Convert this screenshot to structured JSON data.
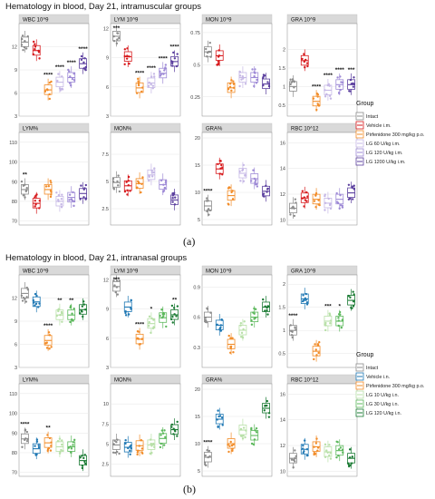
{
  "chart_data": [
    {
      "type": "box",
      "title": "Hematology in blood, Day 21, intramuscular groups",
      "caption": "(a)",
      "legend_title": "Group",
      "legend_placement": "right",
      "groups": [
        {
          "name": "Intact",
          "color": "#8c8c8c"
        },
        {
          "name": "Vehicle i.m.",
          "color": "#d7191c"
        },
        {
          "name": "Pirfenidone 300 mg/kg p.o.",
          "color": "#f28c28"
        },
        {
          "name": "LG 60 U/kg i.m.",
          "color": "#c6b8e6"
        },
        {
          "name": "LG 120 U/kg i.m.",
          "color": "#9e8ad6"
        },
        {
          "name": "LG 1200 U/kg i.m.",
          "color": "#5b3f9e"
        }
      ],
      "panels": [
        {
          "title": "WBC 10^9",
          "ylim": [
            3,
            15
          ],
          "yticks": [
            3,
            6,
            9,
            12
          ],
          "medians": [
            12.6,
            11.5,
            6.4,
            7.4,
            8.0,
            9.8
          ],
          "stars": [
            "",
            "",
            "****",
            "****",
            "****",
            "****"
          ]
        },
        {
          "title": "LYM 10^9",
          "ylim": [
            3,
            12.5
          ],
          "yticks": [
            3,
            6,
            9,
            12
          ],
          "medians": [
            11.2,
            9.1,
            5.9,
            6.4,
            7.4,
            8.6
          ],
          "stars": [
            "***",
            "",
            "****",
            "****",
            "****",
            "****"
          ]
        },
        {
          "title": "MON 10^9",
          "ylim": [
            0.1,
            0.82
          ],
          "yticks": [
            0.25,
            0.5,
            0.75
          ],
          "medians": [
            0.6,
            0.57,
            0.32,
            0.4,
            0.4,
            0.35
          ],
          "stars": [
            "",
            "",
            "",
            "",
            "",
            ""
          ]
        },
        {
          "title": "GRA 10^9",
          "ylim": [
            0.2,
            2.7
          ],
          "yticks": [
            0.5,
            1.0,
            1.5,
            2.0
          ],
          "medians": [
            1.0,
            1.7,
            0.6,
            0.9,
            1.05,
            1.05
          ],
          "stars": [
            "",
            "",
            "****",
            "****",
            "****",
            "***"
          ]
        },
        {
          "title": "LYM%",
          "ylim": [
            68,
            115
          ],
          "yticks": [
            70,
            80,
            90,
            100,
            110
          ],
          "medians": [
            86,
            79,
            86,
            80,
            82,
            84
          ],
          "stars": [
            "**",
            "",
            "",
            "",
            "",
            ""
          ]
        },
        {
          "title": "MON%",
          "ylim": [
            1,
            9.5
          ],
          "yticks": [
            2.5,
            5.0,
            7.5
          ],
          "medians": [
            4.9,
            4.6,
            4.8,
            5.6,
            4.7,
            3.3
          ],
          "stars": [
            "",
            "",
            "",
            "",
            "",
            ""
          ]
        },
        {
          "title": "GRA%",
          "ylim": [
            4,
            21
          ],
          "yticks": [
            5,
            10,
            15,
            20
          ],
          "medians": [
            7.5,
            14.3,
            9.4,
            13.5,
            12.5,
            10.2
          ],
          "stars": [
            "****",
            "",
            "",
            "",
            "",
            ""
          ]
        },
        {
          "title": "RBC 10^12",
          "ylim": [
            9.6,
            16.8
          ],
          "yticks": [
            10,
            12,
            14,
            16
          ],
          "medians": [
            10.9,
            11.7,
            11.6,
            11.3,
            11.6,
            12.1
          ],
          "stars": [
            "",
            "",
            "",
            "",
            "",
            ""
          ]
        }
      ]
    },
    {
      "type": "box",
      "title": "Hematology in blood, Day 21, intranasal groups",
      "caption": "(b)",
      "legend_title": "Group",
      "legend_placement": "right",
      "groups": [
        {
          "name": "Intact",
          "color": "#8c8c8c"
        },
        {
          "name": "Vehicle i.n.",
          "color": "#1f78b4"
        },
        {
          "name": "Pirfenidone 300 mg/kg p.o.",
          "color": "#f28c28"
        },
        {
          "name": "LG 10 U/kg i.n.",
          "color": "#b8e0a8"
        },
        {
          "name": "LG 30 U/kg i.n.",
          "color": "#5cb85c"
        },
        {
          "name": "LG 120 U/kg i.n.",
          "color": "#1a7a33"
        }
      ],
      "panels": [
        {
          "title": "WBC 10^9",
          "ylim": [
            3,
            15
          ],
          "yticks": [
            3,
            6,
            9,
            12
          ],
          "medians": [
            12.6,
            11.5,
            6.5,
            9.8,
            9.8,
            10.5
          ],
          "stars": [
            "",
            "",
            "****",
            "**",
            "**",
            ""
          ]
        },
        {
          "title": "LYM 10^9",
          "ylim": [
            3,
            12.5
          ],
          "yticks": [
            3,
            6,
            9,
            12
          ],
          "medians": [
            11.3,
            9.2,
            5.9,
            7.5,
            8.1,
            8.4
          ],
          "stars": [
            "***",
            "",
            "****",
            "*",
            "",
            "**"
          ]
        },
        {
          "title": "MON 10^9",
          "ylim": [
            0.1,
            1.02
          ],
          "yticks": [
            0.3,
            0.6,
            0.9
          ],
          "medians": [
            0.6,
            0.52,
            0.33,
            0.47,
            0.6,
            0.7
          ],
          "stars": [
            "",
            "",
            "",
            "",
            "",
            ""
          ]
        },
        {
          "title": "GRA 10^9",
          "ylim": [
            0.2,
            2.2
          ],
          "yticks": [
            0.5,
            1.0,
            1.5,
            2.0
          ],
          "medians": [
            1.0,
            1.68,
            0.55,
            1.2,
            1.2,
            1.65
          ],
          "stars": [
            "****",
            "",
            "",
            "***",
            "*",
            ""
          ]
        },
        {
          "title": "LYM%",
          "ylim": [
            68,
            115
          ],
          "yticks": [
            70,
            80,
            90,
            100,
            110
          ],
          "medians": [
            87,
            82,
            85,
            83,
            83,
            76
          ],
          "stars": [
            "****",
            "",
            "**",
            "",
            "",
            ""
          ]
        },
        {
          "title": "MON%",
          "ylim": [
            1,
            12.5
          ],
          "yticks": [
            2.5,
            5.0,
            7.5,
            10.0
          ],
          "medians": [
            4.9,
            4.6,
            4.8,
            4.9,
            5.7,
            6.8
          ],
          "stars": [
            "",
            "",
            "",
            "",
            "",
            ""
          ]
        },
        {
          "title": "GRA%",
          "ylim": [
            4,
            21
          ],
          "yticks": [
            5,
            10,
            15,
            20
          ],
          "medians": [
            7.5,
            14.5,
            10.0,
            12.5,
            11.5,
            16.5
          ],
          "stars": [
            "****",
            "",
            "",
            "",
            "",
            ""
          ]
        },
        {
          "title": "RBC 10^12",
          "ylim": [
            9.6,
            16.8
          ],
          "yticks": [
            10,
            12,
            14,
            16
          ],
          "medians": [
            11.0,
            11.7,
            11.9,
            11.5,
            11.6,
            11.0
          ],
          "stars": [
            "",
            "",
            "",
            "",
            "",
            ""
          ]
        }
      ]
    }
  ]
}
